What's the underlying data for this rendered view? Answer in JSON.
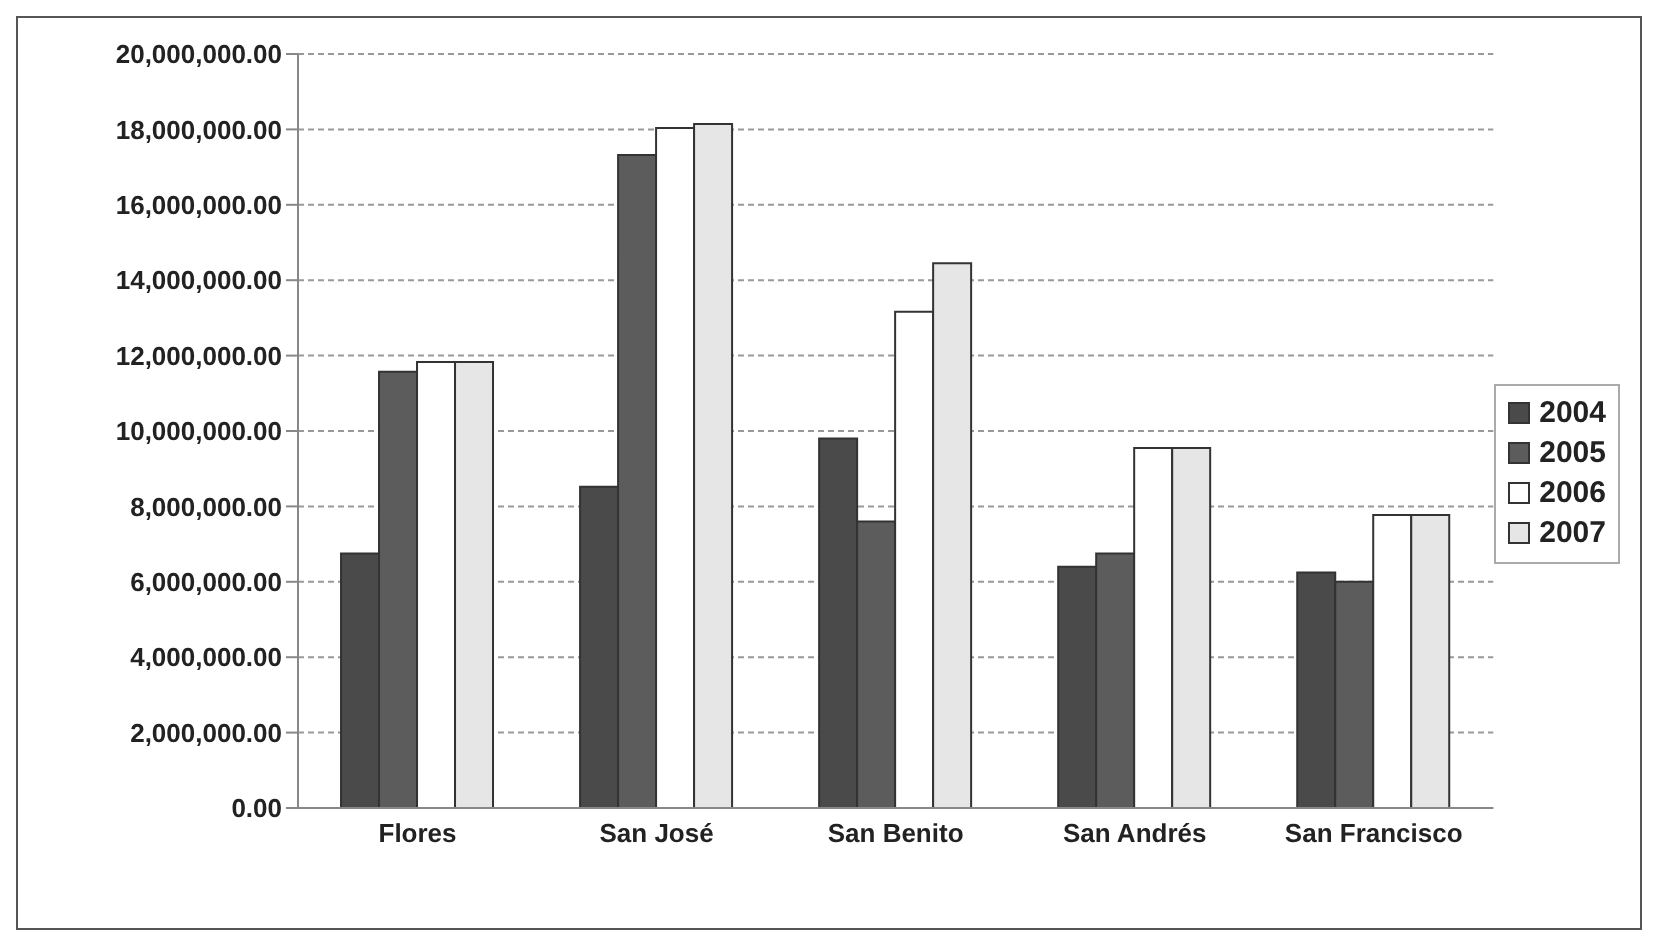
{
  "chart_data": {
    "type": "bar",
    "categories": [
      "Flores",
      "San José",
      "San Benito",
      "San Andrés",
      "San Francisco"
    ],
    "series": [
      {
        "name": "2004",
        "color": "#4a4a4a",
        "values": [
          6750000,
          8520000,
          9800000,
          6400000,
          6250000
        ]
      },
      {
        "name": "2005",
        "color": "#5c5c5c",
        "values": [
          11570000,
          17320000,
          7600000,
          6750000,
          6000000
        ]
      },
      {
        "name": "2006",
        "color": "#ffffff",
        "values": [
          11830000,
          18040000,
          13160000,
          9550000,
          7770000
        ]
      },
      {
        "name": "2007",
        "color": "#e6e6e6",
        "values": [
          11830000,
          18140000,
          14450000,
          9550000,
          7770000
        ]
      }
    ],
    "ylim": [
      0,
      20000000
    ],
    "yticks": [
      {
        "value": 0,
        "label": "0.00"
      },
      {
        "value": 2000000,
        "label": "2,000,000.00"
      },
      {
        "value": 4000000,
        "label": "4,000,000.00"
      },
      {
        "value": 6000000,
        "label": "6,000,000.00"
      },
      {
        "value": 8000000,
        "label": "8,000,000.00"
      },
      {
        "value": 10000000,
        "label": "10,000,000.00"
      },
      {
        "value": 12000000,
        "label": "12,000,000.00"
      },
      {
        "value": 14000000,
        "label": "14,000,000.00"
      },
      {
        "value": 16000000,
        "label": "16,000,000.00"
      },
      {
        "value": 18000000,
        "label": "18,000,000.00"
      },
      {
        "value": 20000000,
        "label": "20,000,000.00"
      }
    ],
    "grid": "y",
    "legend": "right"
  }
}
